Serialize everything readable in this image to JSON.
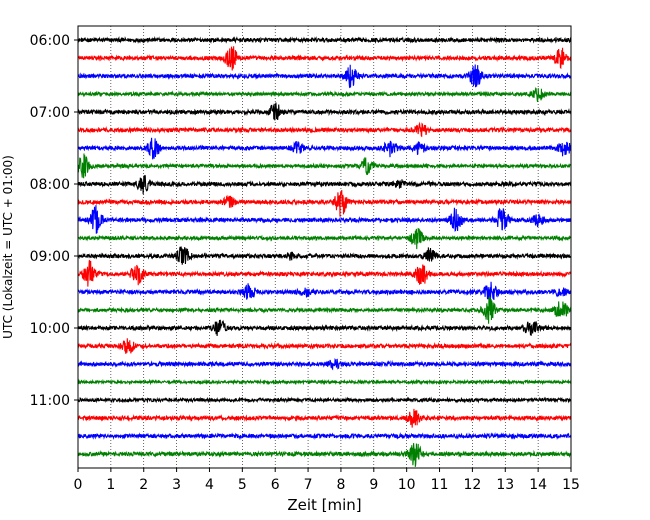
{
  "chart_data": {
    "type": "line",
    "title": "",
    "xlabel": "Zeit  [min]",
    "ylabel": "UTC (Lokalzeit = UTC + 01:00)",
    "xlim": [
      0,
      15
    ],
    "x_ticks": [
      0,
      1,
      2,
      3,
      4,
      5,
      6,
      7,
      8,
      9,
      10,
      11,
      12,
      13,
      14,
      15
    ],
    "x_tick_labels": [
      "0",
      "1",
      "2",
      "3",
      "4",
      "5",
      "6",
      "7",
      "8",
      "9",
      "10",
      "11",
      "12",
      "13",
      "14",
      "15"
    ],
    "y_tick_labels": [
      "06:00",
      "07:00",
      "08:00",
      "09:00",
      "10:00",
      "11:00"
    ],
    "grid": "vertical dotted",
    "row_interval_minutes": 15,
    "color_cycle": [
      "#000000",
      "#ff0000",
      "#0000ff",
      "#008000"
    ],
    "series": [
      {
        "time": "06:00",
        "noise": 0.3,
        "events": []
      },
      {
        "time": "06:15",
        "noise": 0.3,
        "events": [
          {
            "t": 4.65,
            "amp": 2.1
          },
          {
            "t": 14.7,
            "amp": 1.4
          }
        ]
      },
      {
        "time": "06:30",
        "noise": 0.3,
        "events": [
          {
            "t": 8.3,
            "amp": 1.6
          },
          {
            "t": 12.1,
            "amp": 1.7
          }
        ]
      },
      {
        "time": "06:45",
        "noise": 0.25,
        "events": [
          {
            "t": 14.0,
            "amp": 1.0
          }
        ]
      },
      {
        "time": "07:00",
        "noise": 0.3,
        "events": [
          {
            "t": 6.0,
            "amp": 1.3
          }
        ]
      },
      {
        "time": "07:15",
        "noise": 0.3,
        "events": [
          {
            "t": 10.45,
            "amp": 0.8
          }
        ]
      },
      {
        "time": "07:30",
        "noise": 0.3,
        "events": [
          {
            "t": 2.3,
            "amp": 1.5
          },
          {
            "t": 6.7,
            "amp": 0.8
          },
          {
            "t": 9.5,
            "amp": 1.3
          },
          {
            "t": 10.4,
            "amp": 0.9
          },
          {
            "t": 14.8,
            "amp": 1.2
          }
        ]
      },
      {
        "time": "07:45",
        "noise": 0.25,
        "events": [
          {
            "t": 0.15,
            "amp": 1.8
          },
          {
            "t": 8.8,
            "amp": 1.2
          }
        ]
      },
      {
        "time": "08:00",
        "noise": 0.3,
        "events": [
          {
            "t": 2.0,
            "amp": 1.4
          },
          {
            "t": 9.8,
            "amp": 0.5
          }
        ]
      },
      {
        "time": "08:15",
        "noise": 0.3,
        "events": [
          {
            "t": 4.6,
            "amp": 0.8
          },
          {
            "t": 8.0,
            "amp": 2.0
          }
        ]
      },
      {
        "time": "08:30",
        "noise": 0.3,
        "events": [
          {
            "t": 0.55,
            "amp": 2.0
          },
          {
            "t": 11.5,
            "amp": 1.7
          },
          {
            "t": 12.9,
            "amp": 1.9
          },
          {
            "t": 14.0,
            "amp": 0.8
          }
        ]
      },
      {
        "time": "08:45",
        "noise": 0.25,
        "events": [
          {
            "t": 10.3,
            "amp": 1.5
          }
        ]
      },
      {
        "time": "09:00",
        "noise": 0.3,
        "events": [
          {
            "t": 3.2,
            "amp": 1.6
          },
          {
            "t": 6.5,
            "amp": 0.5
          },
          {
            "t": 10.7,
            "amp": 1.1
          }
        ]
      },
      {
        "time": "09:15",
        "noise": 0.3,
        "events": [
          {
            "t": 0.35,
            "amp": 1.8
          },
          {
            "t": 1.8,
            "amp": 1.6
          },
          {
            "t": 10.45,
            "amp": 1.8
          }
        ]
      },
      {
        "time": "09:30",
        "noise": 0.3,
        "events": [
          {
            "t": 5.2,
            "amp": 1.2
          },
          {
            "t": 6.9,
            "amp": 0.7
          },
          {
            "t": 12.55,
            "amp": 1.5
          },
          {
            "t": 14.7,
            "amp": 0.6
          }
        ]
      },
      {
        "time": "09:45",
        "noise": 0.25,
        "events": [
          {
            "t": 12.5,
            "amp": 1.9
          },
          {
            "t": 14.7,
            "amp": 1.8
          }
        ]
      },
      {
        "time": "10:00",
        "noise": 0.3,
        "events": [
          {
            "t": 4.3,
            "amp": 1.2
          },
          {
            "t": 13.8,
            "amp": 1.4
          }
        ]
      },
      {
        "time": "10:15",
        "noise": 0.3,
        "events": [
          {
            "t": 1.5,
            "amp": 1.3
          }
        ]
      },
      {
        "time": "10:30",
        "noise": 0.3,
        "events": [
          {
            "t": 7.8,
            "amp": 0.6
          }
        ]
      },
      {
        "time": "10:45",
        "noise": 0.2,
        "events": []
      },
      {
        "time": "11:00",
        "noise": 0.25,
        "events": []
      },
      {
        "time": "11:15",
        "noise": 0.3,
        "events": [
          {
            "t": 10.2,
            "amp": 1.4
          }
        ]
      },
      {
        "time": "11:30",
        "noise": 0.3,
        "events": []
      },
      {
        "time": "11:45",
        "noise": 0.3,
        "events": [
          {
            "t": 10.25,
            "amp": 1.8
          }
        ]
      }
    ]
  }
}
